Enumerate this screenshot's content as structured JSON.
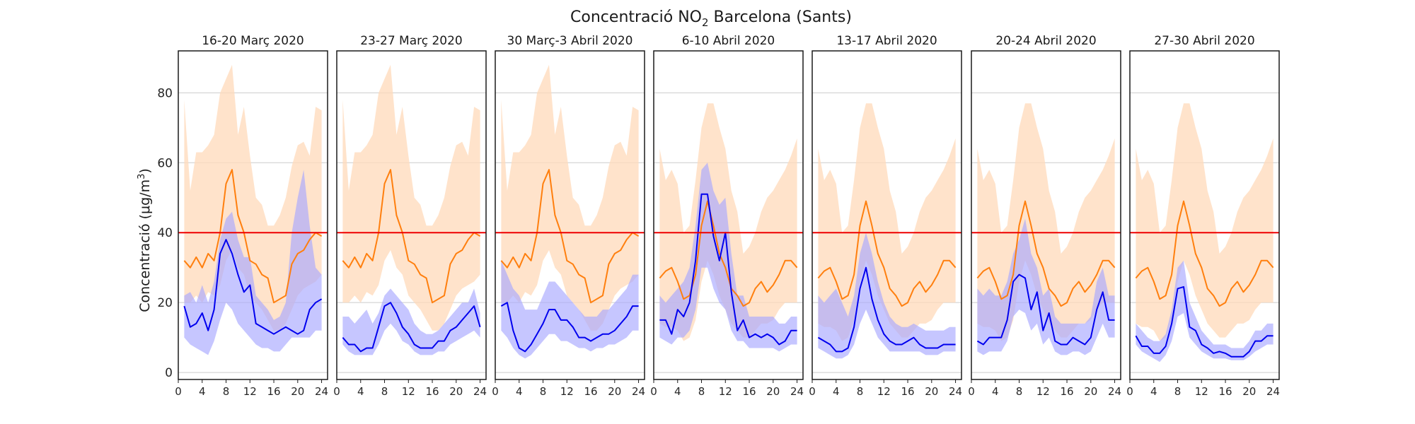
{
  "chart_data": {
    "type": "line",
    "title": "Concentració NO",
    "title_sub": "2",
    "title_rest": " Barcelona (Sants)",
    "ylabel": "Concentració (μg/m",
    "ylabel_sup": "3",
    "ylabel_end": ")",
    "ylim": [
      -2,
      92
    ],
    "xlim": [
      0,
      25
    ],
    "yticks": [
      0,
      20,
      40,
      60,
      80
    ],
    "xticks": [
      0,
      4,
      8,
      12,
      16,
      20,
      24
    ],
    "threshold": 40,
    "grid": "horizontal",
    "colors": {
      "reference_line": "#ff7f0e",
      "reference_band": "#ffdab9",
      "current_line": "#0000ee",
      "current_band": "#a7a7ff",
      "threshold_line": "#ee0000",
      "grid": "#cccccc"
    },
    "hours": [
      1,
      2,
      3,
      4,
      5,
      6,
      7,
      8,
      9,
      10,
      11,
      12,
      13,
      14,
      15,
      16,
      17,
      18,
      19,
      20,
      21,
      22,
      23,
      24
    ],
    "panels": [
      {
        "title": "16-20 Març 2020",
        "reference_line": [
          32,
          30,
          33,
          30,
          34,
          32,
          40,
          54,
          58,
          45,
          40,
          32,
          31,
          28,
          27,
          20,
          21,
          22,
          31,
          34,
          35,
          38,
          40,
          39
        ],
        "reference_band_low": [
          20,
          20,
          22,
          20,
          23,
          22,
          25,
          32,
          35,
          30,
          28,
          22,
          20,
          18,
          15,
          12,
          12,
          14,
          18,
          22,
          24,
          25,
          26,
          28
        ],
        "reference_band_high": [
          78,
          52,
          63,
          63,
          65,
          68,
          80,
          84,
          88,
          68,
          76,
          62,
          50,
          48,
          42,
          42,
          45,
          50,
          59,
          65,
          66,
          62,
          76,
          75
        ],
        "current_line": [
          19,
          13,
          14,
          17,
          12,
          18,
          34,
          38,
          34,
          28,
          23,
          25,
          14,
          13,
          12,
          11,
          12,
          13,
          12,
          11,
          12,
          18,
          20,
          21
        ],
        "current_band_low": [
          10,
          8,
          7,
          6,
          5,
          9,
          15,
          20,
          18,
          14,
          12,
          10,
          8,
          7,
          7,
          6,
          6,
          8,
          10,
          10,
          10,
          10,
          12,
          12
        ],
        "current_band_high": [
          22,
          23,
          20,
          25,
          20,
          26,
          38,
          44,
          46,
          38,
          33,
          33,
          22,
          20,
          18,
          15,
          16,
          20,
          40,
          50,
          58,
          42,
          30,
          28
        ]
      },
      {
        "title": "23-27 Març 2020",
        "reference_line": [
          32,
          30,
          33,
          30,
          34,
          32,
          40,
          54,
          58,
          45,
          40,
          32,
          31,
          28,
          27,
          20,
          21,
          22,
          31,
          34,
          35,
          38,
          40,
          39
        ],
        "reference_band_low": [
          20,
          20,
          22,
          20,
          23,
          22,
          25,
          32,
          35,
          30,
          28,
          22,
          20,
          18,
          15,
          12,
          12,
          14,
          18,
          22,
          24,
          25,
          26,
          28
        ],
        "reference_band_high": [
          78,
          52,
          63,
          63,
          65,
          68,
          80,
          84,
          88,
          68,
          76,
          62,
          50,
          48,
          42,
          42,
          45,
          50,
          59,
          65,
          66,
          62,
          76,
          75
        ],
        "current_line": [
          10,
          8,
          8,
          6,
          7,
          7,
          13,
          19,
          20,
          17,
          13,
          11,
          8,
          7,
          7,
          7,
          9,
          9,
          12,
          13,
          15,
          17,
          19,
          13
        ],
        "current_band_low": [
          8,
          6,
          5,
          5,
          5,
          5,
          8,
          12,
          14,
          12,
          9,
          8,
          6,
          5,
          5,
          5,
          6,
          6,
          8,
          9,
          10,
          11,
          12,
          10
        ],
        "current_band_high": [
          16,
          16,
          14,
          16,
          18,
          14,
          17,
          22,
          24,
          22,
          20,
          18,
          14,
          12,
          11,
          11,
          12,
          14,
          16,
          18,
          20,
          20,
          24,
          17
        ]
      },
      {
        "title": "30 Març-3 Abril 2020",
        "reference_line": [
          32,
          30,
          33,
          30,
          34,
          32,
          40,
          54,
          58,
          45,
          40,
          32,
          31,
          28,
          27,
          20,
          21,
          22,
          31,
          34,
          35,
          38,
          40,
          39
        ],
        "reference_band_low": [
          20,
          20,
          22,
          20,
          23,
          22,
          25,
          32,
          35,
          30,
          28,
          22,
          20,
          18,
          15,
          12,
          12,
          14,
          18,
          22,
          24,
          25,
          26,
          28
        ],
        "reference_band_high": [
          78,
          52,
          63,
          63,
          65,
          68,
          80,
          84,
          88,
          68,
          76,
          62,
          50,
          48,
          42,
          42,
          45,
          50,
          59,
          65,
          66,
          62,
          76,
          75
        ],
        "current_line": [
          19,
          20,
          12,
          7,
          6,
          8,
          11,
          14,
          18,
          18,
          15,
          15,
          13,
          10,
          10,
          9,
          10,
          11,
          11,
          12,
          14,
          16,
          19,
          19
        ],
        "current_band_low": [
          12,
          10,
          7,
          5,
          4,
          5,
          7,
          9,
          11,
          11,
          9,
          9,
          8,
          7,
          7,
          6,
          7,
          7,
          8,
          8,
          9,
          10,
          12,
          12
        ],
        "current_band_high": [
          32,
          28,
          24,
          22,
          18,
          18,
          18,
          22,
          26,
          26,
          24,
          22,
          20,
          18,
          16,
          16,
          16,
          18,
          18,
          20,
          22,
          24,
          28,
          28
        ]
      },
      {
        "title": "6-10 Abril 2020",
        "reference_line": [
          27,
          29,
          30,
          26,
          21,
          22,
          28,
          42,
          49,
          42,
          34,
          30,
          24,
          22,
          19,
          20,
          24,
          26,
          23,
          25,
          28,
          32,
          32,
          30
        ],
        "reference_band_low": [
          14,
          13,
          13,
          12,
          9,
          10,
          15,
          26,
          32,
          28,
          22,
          18,
          14,
          12,
          10,
          10,
          12,
          14,
          14,
          15,
          18,
          20,
          20,
          20
        ],
        "reference_band_high": [
          64,
          55,
          58,
          54,
          40,
          42,
          55,
          70,
          77,
          77,
          70,
          64,
          52,
          46,
          34,
          36,
          40,
          46,
          50,
          52,
          55,
          58,
          62,
          67
        ],
        "current_line": [
          15,
          15,
          11,
          18,
          16,
          20,
          32,
          51,
          51,
          39,
          32,
          40,
          23,
          12,
          15,
          10,
          11,
          10,
          11,
          10,
          8,
          9,
          12,
          12
        ],
        "current_band_low": [
          10,
          9,
          8,
          10,
          10,
          12,
          18,
          30,
          30,
          24,
          20,
          18,
          12,
          9,
          9,
          7,
          7,
          7,
          7,
          7,
          6,
          7,
          8,
          8
        ],
        "current_band_high": [
          22,
          20,
          22,
          24,
          26,
          30,
          42,
          58,
          60,
          52,
          48,
          50,
          34,
          22,
          22,
          16,
          16,
          16,
          16,
          16,
          14,
          14,
          16,
          16
        ]
      },
      {
        "title": "13-17 Abril 2020",
        "reference_line": [
          27,
          29,
          30,
          26,
          21,
          22,
          28,
          42,
          49,
          42,
          34,
          30,
          24,
          22,
          19,
          20,
          24,
          26,
          23,
          25,
          28,
          32,
          32,
          30
        ],
        "reference_band_low": [
          14,
          13,
          13,
          12,
          9,
          10,
          15,
          26,
          32,
          28,
          22,
          18,
          14,
          12,
          10,
          10,
          12,
          14,
          14,
          15,
          18,
          20,
          20,
          20
        ],
        "reference_band_high": [
          64,
          55,
          58,
          54,
          40,
          42,
          55,
          70,
          77,
          77,
          70,
          64,
          52,
          46,
          34,
          36,
          40,
          46,
          50,
          52,
          55,
          58,
          62,
          67
        ],
        "current_line": [
          10,
          9,
          8,
          6,
          6,
          7,
          13,
          24,
          30,
          21,
          15,
          11,
          9,
          8,
          8,
          9,
          10,
          8,
          7,
          7,
          7,
          8,
          8,
          8
        ],
        "current_band_low": [
          7,
          6,
          5,
          4,
          4,
          5,
          8,
          14,
          18,
          14,
          10,
          8,
          6,
          6,
          6,
          6,
          6,
          6,
          5,
          5,
          5,
          6,
          6,
          6
        ],
        "current_band_high": [
          22,
          20,
          22,
          24,
          20,
          16,
          22,
          34,
          40,
          34,
          26,
          20,
          16,
          14,
          13,
          13,
          14,
          13,
          12,
          12,
          12,
          12,
          13,
          13
        ]
      },
      {
        "title": "20-24 Abril 2020",
        "reference_line": [
          27,
          29,
          30,
          26,
          21,
          22,
          28,
          42,
          49,
          42,
          34,
          30,
          24,
          22,
          19,
          20,
          24,
          26,
          23,
          25,
          28,
          32,
          32,
          30
        ],
        "reference_band_low": [
          14,
          13,
          13,
          12,
          9,
          10,
          15,
          26,
          32,
          28,
          22,
          18,
          14,
          12,
          10,
          10,
          12,
          14,
          14,
          15,
          18,
          20,
          20,
          20
        ],
        "reference_band_high": [
          64,
          55,
          58,
          54,
          40,
          42,
          55,
          70,
          77,
          77,
          70,
          64,
          52,
          46,
          34,
          36,
          40,
          46,
          50,
          52,
          55,
          58,
          62,
          67
        ],
        "current_line": [
          9,
          8,
          10,
          10,
          10,
          15,
          26,
          28,
          27,
          18,
          23,
          12,
          17,
          9,
          8,
          8,
          10,
          9,
          8,
          10,
          18,
          23,
          15,
          15
        ],
        "current_band_low": [
          6,
          5,
          6,
          6,
          6,
          9,
          16,
          18,
          17,
          12,
          14,
          8,
          10,
          6,
          5,
          5,
          6,
          6,
          5,
          6,
          10,
          14,
          10,
          10
        ],
        "current_band_high": [
          24,
          22,
          24,
          22,
          22,
          26,
          34,
          38,
          44,
          34,
          30,
          22,
          24,
          16,
          14,
          14,
          14,
          14,
          14,
          16,
          26,
          30,
          22,
          22
        ]
      },
      {
        "title": "27-30 Abril 2020",
        "reference_line": [
          27,
          29,
          30,
          26,
          21,
          22,
          28,
          42,
          49,
          42,
          34,
          30,
          24,
          22,
          19,
          20,
          24,
          26,
          23,
          25,
          28,
          32,
          32,
          30
        ],
        "reference_band_low": [
          14,
          13,
          13,
          12,
          9,
          10,
          15,
          26,
          32,
          28,
          22,
          18,
          14,
          12,
          10,
          10,
          12,
          14,
          14,
          15,
          18,
          20,
          20,
          20
        ],
        "reference_band_high": [
          64,
          55,
          58,
          54,
          40,
          42,
          55,
          70,
          77,
          77,
          70,
          64,
          52,
          46,
          34,
          36,
          40,
          46,
          50,
          52,
          55,
          58,
          62,
          67
        ],
        "current_line": [
          10.5,
          7.5,
          7.5,
          5.5,
          5.5,
          7.5,
          14,
          24,
          24.5,
          13,
          12,
          8,
          7,
          5.5,
          6,
          5.5,
          4.5,
          4.5,
          4.5,
          6,
          9,
          9,
          10.5,
          10.5
        ],
        "current_band_low": [
          8,
          6,
          5,
          4,
          3,
          5,
          9,
          16,
          17,
          10,
          8,
          6,
          5,
          4,
          4,
          4,
          3.5,
          3.5,
          3.5,
          4.5,
          6,
          7,
          8,
          8
        ],
        "current_band_high": [
          14,
          12,
          10,
          9,
          9,
          11,
          18,
          30,
          32,
          20,
          16,
          12,
          10,
          8,
          8,
          8,
          7,
          7,
          7,
          9,
          12,
          12,
          14,
          14
        ]
      }
    ]
  }
}
